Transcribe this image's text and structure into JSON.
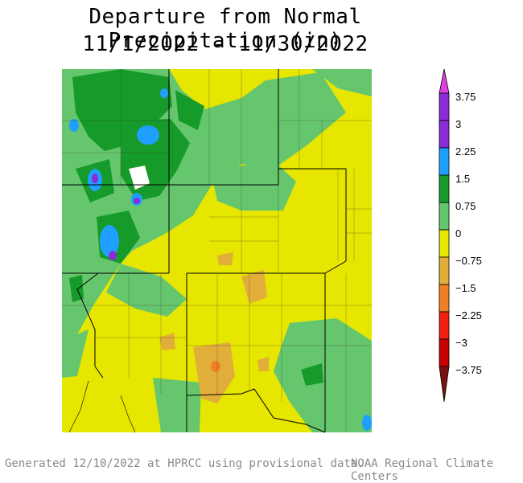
{
  "title": {
    "line1": "Departure from Normal Precipitation (in)",
    "line2": "11/1/2022 - 11/30/2022"
  },
  "legend": {
    "units": "in",
    "labels": [
      "3.75",
      "3",
      "2.25",
      "1.5",
      "0.75",
      "0",
      "−0.75",
      "−1.5",
      "−2.25",
      "−3",
      "−3.75"
    ],
    "colors": {
      "above_3": "#e23fe2",
      "2.25_to_3": "#8a2bd8",
      "1.5_to_2.25": "#1f9fff",
      "0.75_to_1.5": "#169a2a",
      "0_to_0.75": "#66c66e",
      "minus0.75_to_0": "#e6e600",
      "minus1.5_to_minus0.75": "#e2ae3a",
      "minus2.25_to_minus1.5": "#ef7f22",
      "minus3_to_minus2.25": "#f21f12",
      "minus3.75_to_minus3": "#c80000",
      "below_minus3.75": "#7a0f0f"
    }
  },
  "footer": {
    "left": "Generated 12/10/2022 at HPRCC using provisional data.",
    "right": "NOAA Regional Climate Centers"
  }
}
